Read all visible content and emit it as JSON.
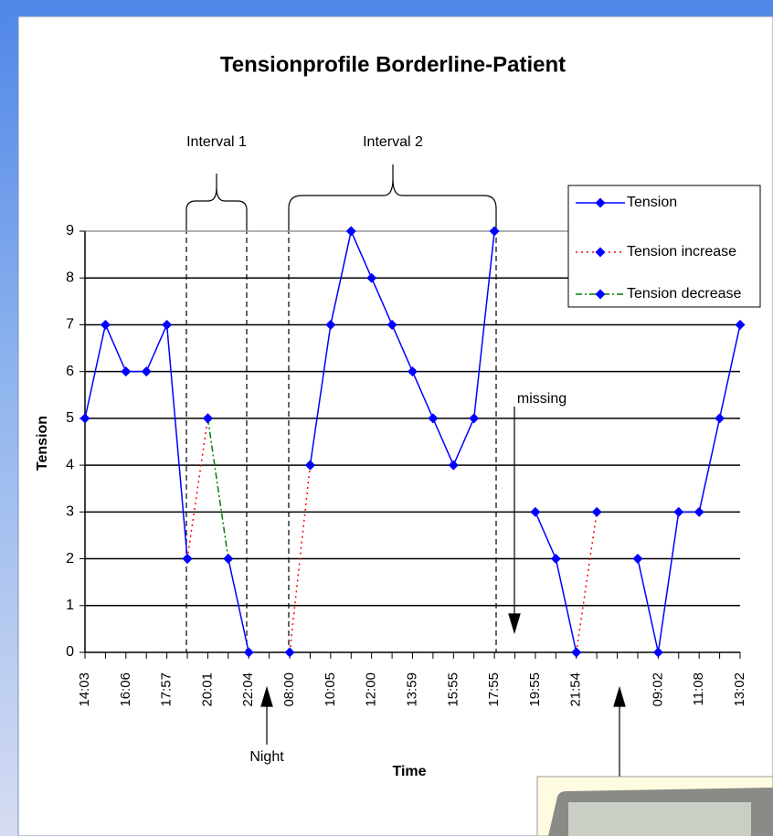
{
  "chart_data": {
    "type": "line",
    "title": "Tensionprofile Borderline-Patient",
    "x_label": "Time",
    "y_label": "Tension",
    "categories": [
      "14:03",
      null,
      "16:06",
      null,
      "17:57",
      null,
      "20:01",
      null,
      "22:04",
      null,
      "08:00",
      null,
      "10:05",
      null,
      "12:00",
      null,
      "13:59",
      null,
      "15:55",
      null,
      "17:55",
      null,
      "19:55",
      null,
      "21:54",
      null,
      null,
      null,
      "09:02",
      null,
      "11:08",
      null,
      "13:02"
    ],
    "series": [
      {
        "name": "Tension",
        "color": "#0000ff",
        "line_style": "solid",
        "values": [
          5,
          7,
          6,
          6,
          7,
          2,
          null,
          2,
          0,
          null,
          null,
          4,
          7,
          9,
          8,
          7,
          6,
          5,
          4,
          5,
          9,
          null,
          3,
          2,
          0,
          null,
          null,
          2,
          0,
          3,
          3,
          5,
          7
        ]
      },
      {
        "name": "Tension increase",
        "color": "#ff0000",
        "line_style": "dotted",
        "values": [
          null,
          null,
          null,
          null,
          null,
          2,
          5,
          null,
          null,
          null,
          0,
          4,
          null,
          null,
          null,
          null,
          null,
          null,
          null,
          null,
          null,
          null,
          null,
          null,
          0,
          3,
          null,
          null,
          null,
          null,
          null,
          null,
          null
        ]
      },
      {
        "name": "Tension decrease",
        "color": "#008000",
        "line_style": "dashdot",
        "values": [
          null,
          null,
          null,
          null,
          null,
          null,
          5,
          2,
          null,
          null,
          null,
          null,
          null,
          null,
          null,
          null,
          null,
          null,
          null,
          null,
          null,
          null,
          null,
          null,
          null,
          null,
          null,
          null,
          null,
          null,
          null,
          null,
          null
        ]
      }
    ],
    "marker_color": "#0000ff",
    "ylim": [
      0,
      9
    ],
    "yticks": [
      0,
      1,
      2,
      3,
      4,
      5,
      6,
      7,
      8,
      9
    ],
    "grid": true,
    "legend": "upper right",
    "annotations": [
      "Interval 1",
      "Interval 2",
      "missing",
      "Night"
    ]
  }
}
